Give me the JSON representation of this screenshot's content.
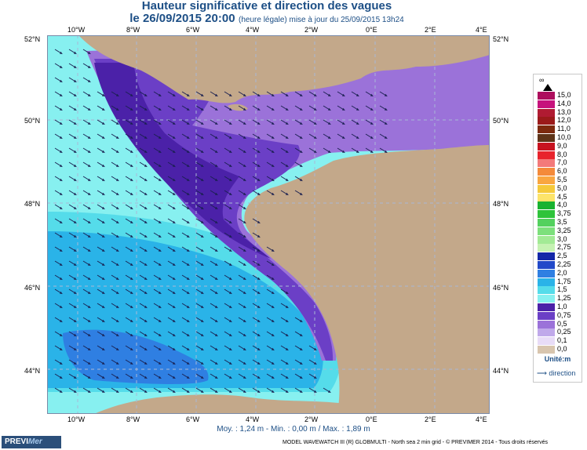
{
  "title": {
    "line1": "Hauteur significative et direction des vagues",
    "line2_main": "le 26/09/2015 20:00",
    "line2_note": "(heure légale) mise à jour du 25/09/2015 13h24"
  },
  "map": {
    "lon_labels": [
      "10°W",
      "8°W",
      "6°W",
      "4°W",
      "2°W",
      "0°E",
      "2°E",
      "4°E"
    ],
    "lat_labels": [
      "52°N",
      "50°N",
      "48°N",
      "46°N",
      "44°N"
    ],
    "colors": {
      "land": "#c3a88a",
      "band_0_75": "#c0a9ea",
      "band_1_0": "#9b72d9",
      "band_1_25": "#6b3fc6",
      "band_1_5": "#4b21a8",
      "band_1_75": "#55dcea",
      "band_2_0": "#2ab3e8",
      "band_2_25": "#2f7fe2",
      "band_2_5": "#2149c9",
      "arrow": "#1a2050"
    }
  },
  "legend": {
    "top_marker": "∞",
    "items": [
      {
        "label": "15,0",
        "color": "#ad0e5d"
      },
      {
        "label": "14,0",
        "color": "#c6127c"
      },
      {
        "label": "13,0",
        "color": "#b01b32"
      },
      {
        "label": "12,0",
        "color": "#9b1a1a"
      },
      {
        "label": "11,0",
        "color": "#7d2a0e"
      },
      {
        "label": "10,0",
        "color": "#5e3418"
      },
      {
        "label": "9,0",
        "color": "#c7121f"
      },
      {
        "label": "8,0",
        "color": "#e8232c"
      },
      {
        "label": "7,0",
        "color": "#f37a7a"
      },
      {
        "label": "6,0",
        "color": "#f48a3a"
      },
      {
        "label": "5,5",
        "color": "#f9a640"
      },
      {
        "label": "5,0",
        "color": "#f5c93a"
      },
      {
        "label": "4,5",
        "color": "#fde46a"
      },
      {
        "label": "4,0",
        "color": "#19b230"
      },
      {
        "label": "3,75",
        "color": "#2ec33a"
      },
      {
        "label": "3,5",
        "color": "#53d15e"
      },
      {
        "label": "3,25",
        "color": "#7de07c"
      },
      {
        "label": "3,0",
        "color": "#a2ea95"
      },
      {
        "label": "2,75",
        "color": "#c5f2b2"
      },
      {
        "label": "2,5",
        "color": "#1428a8"
      },
      {
        "label": "2,25",
        "color": "#2149c9"
      },
      {
        "label": "2,0",
        "color": "#2f7fe2"
      },
      {
        "label": "1,75",
        "color": "#2ab3e8"
      },
      {
        "label": "1,5",
        "color": "#55dcea"
      },
      {
        "label": "1,25",
        "color": "#87f0f0"
      },
      {
        "label": "1,0",
        "color": "#4b21a8"
      },
      {
        "label": "0,75",
        "color": "#6b3fc6"
      },
      {
        "label": "0,5",
        "color": "#9b72d9"
      },
      {
        "label": "0,25",
        "color": "#c0a9ea"
      },
      {
        "label": "0,1",
        "color": "#e8dcf7"
      },
      {
        "label": "0,0",
        "color": "#d8c5ae"
      }
    ],
    "unit_label": "Unité:m",
    "direction_label": "direction"
  },
  "stats": {
    "text": "Moy. : 1,24 m  -  Min. : 0,00 m / Max. : 1,89 m"
  },
  "footer": {
    "logo_main": "PREVI",
    "logo_accent": "Mer",
    "credit": "MODEL WAVEWATCH III (R) GLOBMULTI - North sea 2 min grid - © PREVIMER 2014 - Tous droits réservés"
  }
}
